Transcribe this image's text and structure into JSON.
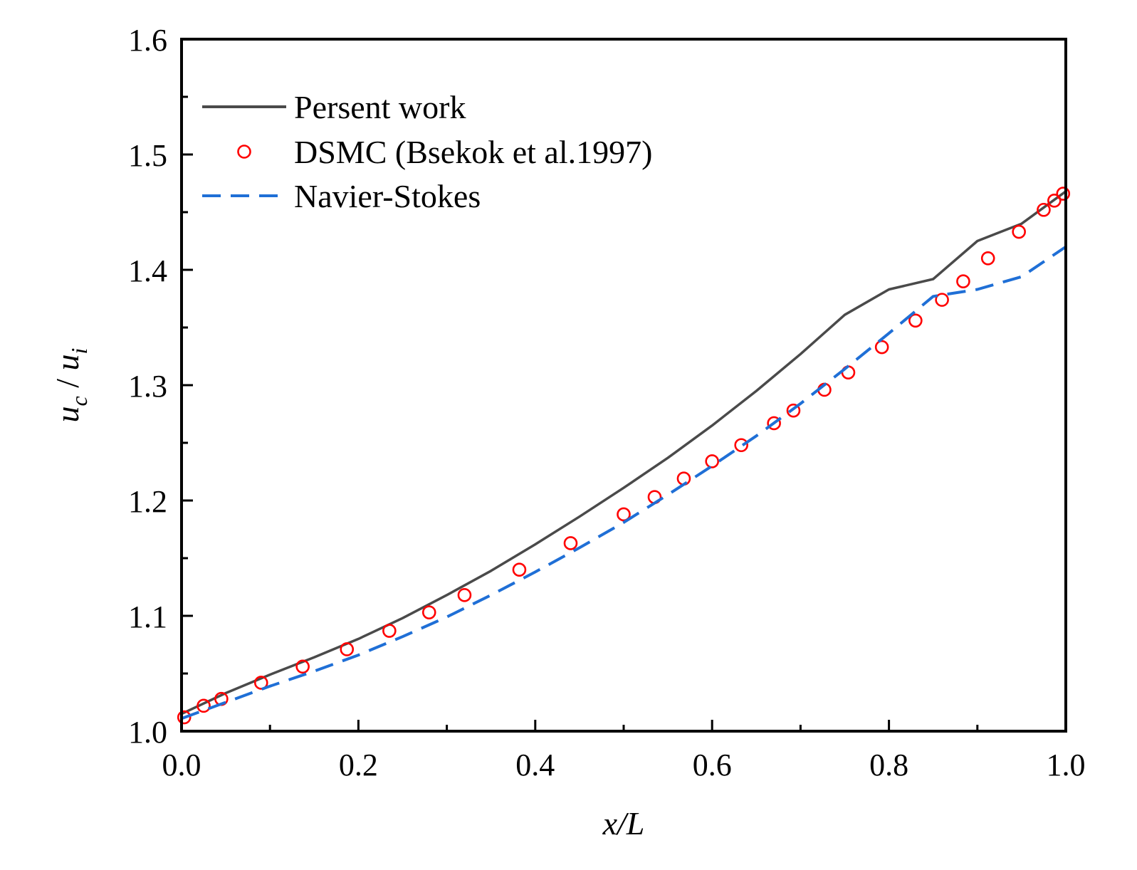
{
  "chart_data": {
    "type": "line",
    "title": "",
    "xlabel": "x/L",
    "ylabel": {
      "main": "u",
      "sub1": "c",
      "slash": " / ",
      "main2": "u",
      "sub2": "i"
    },
    "xlim": [
      0.0,
      1.0
    ],
    "ylim": [
      1.0,
      1.6
    ],
    "xticks": [
      "0.0",
      "0.2",
      "0.4",
      "0.6",
      "0.8",
      "1.0"
    ],
    "xtick_values": [
      0.0,
      0.2,
      0.4,
      0.6,
      0.8,
      1.0
    ],
    "yticks": [
      "1.0",
      "1.1",
      "1.2",
      "1.3",
      "1.4",
      "1.5",
      "1.6"
    ],
    "ytick_values": [
      1.0,
      1.1,
      1.2,
      1.3,
      1.4,
      1.5,
      1.6
    ],
    "grid": false,
    "legend_position": "top-left",
    "series": [
      {
        "name": "Persent work",
        "style": "solid",
        "color": "#4a4a4a",
        "x": [
          0.0,
          0.05,
          0.1,
          0.15,
          0.2,
          0.25,
          0.3,
          0.35,
          0.4,
          0.45,
          0.5,
          0.55,
          0.6,
          0.65,
          0.7,
          0.75,
          0.8,
          0.85,
          0.9,
          0.95,
          1.0
        ],
        "y": [
          1.015,
          1.033,
          1.049,
          1.064,
          1.08,
          1.098,
          1.118,
          1.139,
          1.162,
          1.186,
          1.211,
          1.237,
          1.265,
          1.295,
          1.327,
          1.361,
          1.383,
          1.392,
          1.425,
          1.44,
          1.468
        ]
      },
      {
        "name": "DSMC (Bsekok et al.1997)",
        "style": "markers",
        "color": "#ff0000",
        "x": [
          0.003,
          0.025,
          0.045,
          0.09,
          0.137,
          0.187,
          0.235,
          0.28,
          0.32,
          0.382,
          0.44,
          0.5,
          0.535,
          0.568,
          0.6,
          0.633,
          0.67,
          0.692,
          0.727,
          0.754,
          0.792,
          0.83,
          0.86,
          0.884,
          0.912,
          0.947,
          0.975,
          0.987,
          0.997
        ],
        "y": [
          1.012,
          1.022,
          1.028,
          1.042,
          1.056,
          1.071,
          1.087,
          1.103,
          1.118,
          1.14,
          1.163,
          1.188,
          1.203,
          1.219,
          1.234,
          1.248,
          1.267,
          1.278,
          1.296,
          1.311,
          1.333,
          1.356,
          1.374,
          1.39,
          1.41,
          1.433,
          1.452,
          1.46,
          1.466
        ]
      },
      {
        "name": "Navier-Stokes",
        "style": "dashed",
        "color": "#1f6fd6",
        "x": [
          0.0,
          0.05,
          0.1,
          0.15,
          0.2,
          0.25,
          0.3,
          0.35,
          0.4,
          0.45,
          0.5,
          0.55,
          0.6,
          0.65,
          0.7,
          0.75,
          0.8,
          0.85,
          0.9,
          0.95,
          1.0
        ],
        "y": [
          1.011,
          1.025,
          1.039,
          1.052,
          1.066,
          1.082,
          1.099,
          1.118,
          1.138,
          1.159,
          1.181,
          1.205,
          1.23,
          1.256,
          1.284,
          1.314,
          1.345,
          1.377,
          1.383,
          1.394,
          1.42
        ]
      }
    ]
  }
}
